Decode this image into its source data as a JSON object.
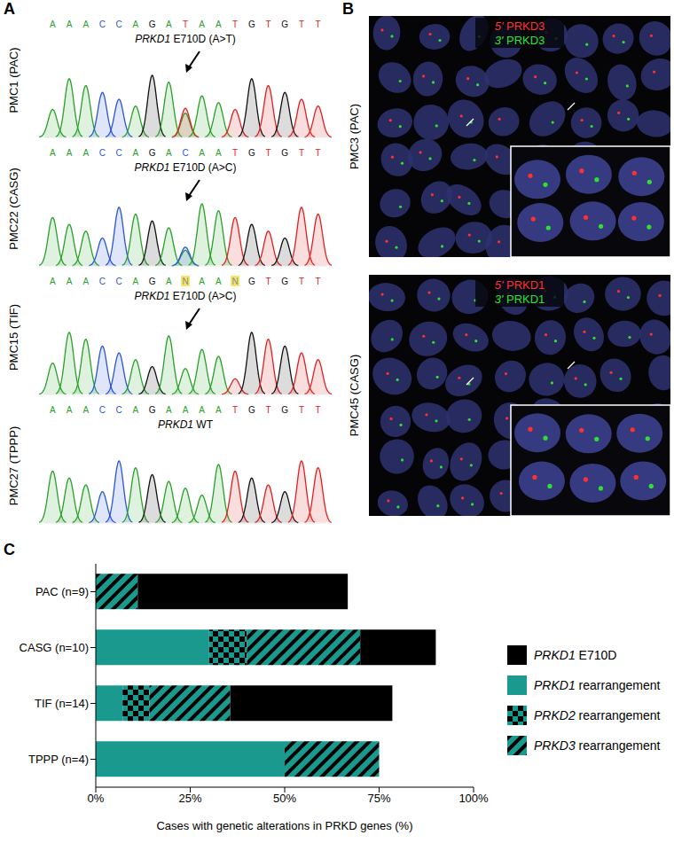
{
  "panel_labels": [
    "A",
    "B",
    "C"
  ],
  "sequencing": {
    "traces": [
      {
        "sample": "PMC1 (PAC)",
        "annotation": "PRKD1 E710D (A>T)",
        "bases": "AAACCAGATAATGTGTT"
      },
      {
        "sample": "PMC22 (CASG)",
        "annotation": "PRKD1 E710D (A>C)",
        "bases": "AAACCAGACAATGTGTT"
      },
      {
        "sample": "PMC15 (TIF)",
        "annotation": "PRKD1 E710D (A>C)",
        "bases": "AAACCAGANAANGTGTT"
      },
      {
        "sample": "PMC27 (TPPP)",
        "annotation": "PRKD1 WT",
        "bases": "AAACCAGAAAATGTGTT"
      }
    ]
  },
  "fish": {
    "images": [
      {
        "sample": "PMC3 (PAC)",
        "probes": [
          {
            "label": "5' PRKD3",
            "color": "#ff3030"
          },
          {
            "label": "3' PRKD3",
            "color": "#30e030"
          }
        ]
      },
      {
        "sample": "PMC45 (CASG)",
        "probes": [
          {
            "label": "5' PRKD1",
            "color": "#ff3030"
          },
          {
            "label": "3' PRKD1",
            "color": "#30e030"
          }
        ]
      }
    ]
  },
  "chart_data": {
    "type": "bar",
    "orientation": "horizontal",
    "stacked": true,
    "legend": "right",
    "categories": [
      "PAC (n=9)",
      "CASG (n=10)",
      "TIF (n=14)",
      "TPPP (n=4)"
    ],
    "series": [
      {
        "name": "PRKD1 E710D",
        "color": "#000000",
        "values": [
          55.6,
          20,
          42.9,
          0
        ]
      },
      {
        "name": "PRKD1 rearrangement",
        "color": "#1a9a8e",
        "values": [
          0,
          30,
          7.1,
          50
        ]
      },
      {
        "name": "PRKD2 rearrangement",
        "color": "#1a9a8e",
        "values": [
          0,
          10,
          7.1,
          0
        ]
      },
      {
        "name": "PRKD3 rearrangement",
        "color": "#1a9a8e",
        "values": [
          11.1,
          30,
          21.4,
          25
        ]
      }
    ],
    "xlim": [
      0,
      100
    ],
    "xticks": [
      {
        "value": 0,
        "label": "0%"
      },
      {
        "value": 25,
        "label": "25%"
      },
      {
        "value": 50,
        "label": "50%"
      },
      {
        "value": 75,
        "label": "75%"
      },
      {
        "value": 100,
        "label": "100%"
      }
    ],
    "xlabel": "Cases with genetic alterations in PRKD genes (%)"
  }
}
